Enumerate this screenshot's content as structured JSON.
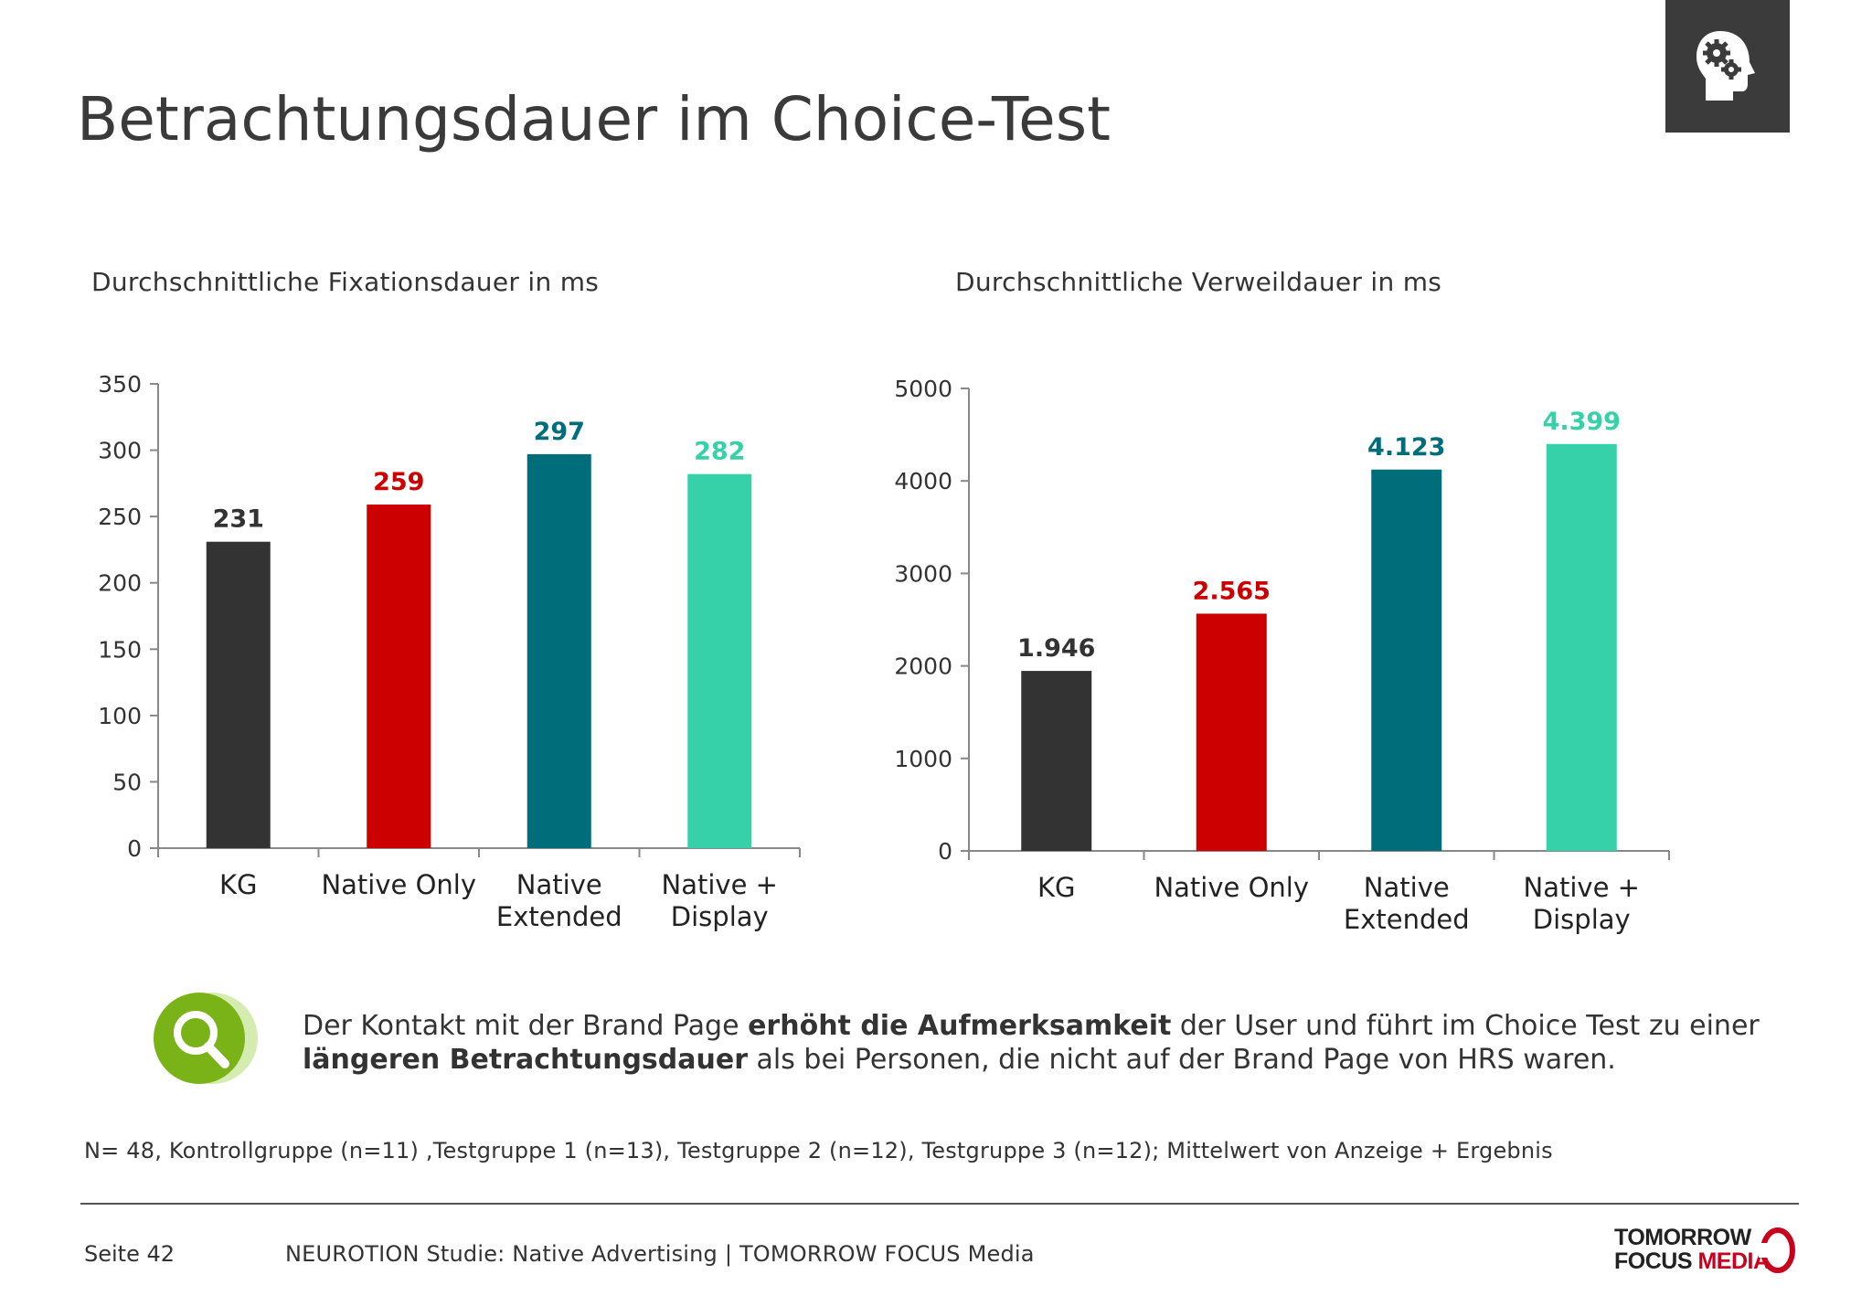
{
  "page": {
    "title": "Betrachtungsdauer im Choice-Test",
    "footnote": "N= 48, Kontrollgruppe (n=11) ,Testgruppe 1 (n=13), Testgruppe 2 (n=12), Testgruppe 3 (n=12); Mittelwert von Anzeige + Ergebnis",
    "page_number": "Seite 42",
    "study": "NEUROTION Studie: Native Advertising | TOMORROW FOCUS Media"
  },
  "finding": {
    "part1": "Der Kontakt mit der Brand Page ",
    "bold1": "erhöht die Aufmerksamkeit",
    "part2": " der User und führt im Choice Test zu einer ",
    "bold2": "längeren Betrachtungsdauer",
    "part3": " als bei Personen, die nicht auf der Brand Page von HRS waren."
  },
  "logo": {
    "line1": "TOMORROW",
    "line2a": "FOCUS",
    "line2b": "MEDIA",
    "color_dark": "#222222",
    "color_red": "#c8001e"
  },
  "icons": {
    "corner": "head-gears-icon",
    "finding": "magnifier-icon"
  },
  "colors": {
    "kg": "#333333",
    "native_only": "#cc0000",
    "native_extended": "#006d7a",
    "native_display": "#36d1a8",
    "finding_icon": "#7ab317"
  },
  "chart_data": [
    {
      "type": "bar",
      "subtitle": "Durchschnittliche Fixationsdauer in ms",
      "categories": [
        [
          "KG"
        ],
        [
          "Native Only"
        ],
        [
          "Native",
          "Extended"
        ],
        [
          "Native +",
          "Display"
        ]
      ],
      "values": [
        231,
        259,
        297,
        282
      ],
      "value_labels": [
        "231",
        "259",
        "297",
        "282"
      ],
      "colors": [
        "#333333",
        "#cc0000",
        "#006d7a",
        "#36d1a8"
      ],
      "ylim": [
        0,
        350
      ],
      "yticks": [
        0,
        50,
        100,
        150,
        200,
        250,
        300,
        350
      ],
      "grid": false,
      "legend": "none"
    },
    {
      "type": "bar",
      "subtitle": "Durchschnittliche Verweildauer in ms",
      "categories": [
        [
          "KG"
        ],
        [
          "Native Only"
        ],
        [
          "Native",
          "Extended"
        ],
        [
          "Native +",
          "Display"
        ]
      ],
      "values": [
        1946,
        2565,
        4123,
        4399
      ],
      "value_labels": [
        "1.946",
        "2.565",
        "4.123",
        "4.399"
      ],
      "colors": [
        "#333333",
        "#cc0000",
        "#006d7a",
        "#36d1a8"
      ],
      "ylim": [
        0,
        5000
      ],
      "yticks": [
        0,
        1000,
        2000,
        3000,
        4000,
        5000
      ],
      "grid": false,
      "legend": "none"
    }
  ]
}
